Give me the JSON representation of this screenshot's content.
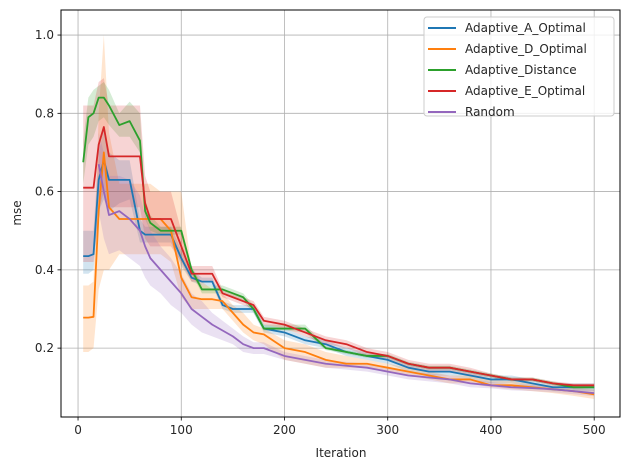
{
  "chart_data": {
    "type": "line",
    "title": "",
    "xlabel": "Iteration",
    "ylabel": "mse",
    "xlim": [
      -16.5,
      525
    ],
    "ylim": [
      0.024,
      1.064
    ],
    "xticks": [
      0,
      100,
      200,
      300,
      400,
      500
    ],
    "yticks": [
      0.2,
      0.4,
      0.6,
      0.8,
      1.0
    ],
    "xtick_labels": [
      "0",
      "100",
      "200",
      "300",
      "400",
      "500"
    ],
    "ytick_labels": [
      "0.2",
      "0.4",
      "0.6",
      "0.8",
      "1.0"
    ],
    "grid": true,
    "legend_position": "upper right",
    "x": [
      5,
      10,
      15,
      20,
      25,
      30,
      40,
      50,
      60,
      65,
      70,
      80,
      90,
      100,
      110,
      120,
      130,
      140,
      150,
      160,
      170,
      180,
      200,
      220,
      240,
      260,
      280,
      300,
      320,
      340,
      360,
      380,
      400,
      420,
      440,
      460,
      480,
      500
    ],
    "series": [
      {
        "name": "Adaptive_A_Optimal",
        "color": "#1f77b4",
        "values": [
          0.435,
          0.435,
          0.44,
          0.63,
          0.68,
          0.63,
          0.63,
          0.63,
          0.5,
          0.49,
          0.49,
          0.49,
          0.49,
          0.43,
          0.38,
          0.37,
          0.37,
          0.31,
          0.3,
          0.3,
          0.3,
          0.25,
          0.24,
          0.22,
          0.21,
          0.19,
          0.18,
          0.17,
          0.15,
          0.14,
          0.14,
          0.13,
          0.12,
          0.12,
          0.11,
          0.1,
          0.1,
          0.1
        ],
        "lower": [
          0.39,
          0.39,
          0.4,
          0.55,
          0.58,
          0.55,
          0.57,
          0.58,
          0.47,
          0.47,
          0.47,
          0.47,
          0.47,
          0.41,
          0.37,
          0.36,
          0.36,
          0.3,
          0.29,
          0.29,
          0.29,
          0.24,
          0.23,
          0.21,
          0.2,
          0.18,
          0.17,
          0.16,
          0.14,
          0.13,
          0.13,
          0.12,
          0.11,
          0.11,
          0.1,
          0.09,
          0.09,
          0.09
        ],
        "upper": [
          0.5,
          0.5,
          0.5,
          0.7,
          0.76,
          0.7,
          0.68,
          0.68,
          0.53,
          0.51,
          0.51,
          0.51,
          0.51,
          0.45,
          0.4,
          0.38,
          0.38,
          0.32,
          0.31,
          0.31,
          0.31,
          0.26,
          0.25,
          0.23,
          0.22,
          0.2,
          0.19,
          0.18,
          0.16,
          0.15,
          0.15,
          0.14,
          0.13,
          0.13,
          0.12,
          0.11,
          0.11,
          0.11
        ]
      },
      {
        "name": "Adaptive_D_Optimal",
        "color": "#ff7f0e",
        "values": [
          0.278,
          0.278,
          0.28,
          0.55,
          0.7,
          0.56,
          0.53,
          0.53,
          0.53,
          0.53,
          0.53,
          0.53,
          0.5,
          0.38,
          0.33,
          0.325,
          0.325,
          0.32,
          0.29,
          0.26,
          0.24,
          0.235,
          0.2,
          0.19,
          0.17,
          0.16,
          0.16,
          0.15,
          0.14,
          0.13,
          0.12,
          0.12,
          0.105,
          0.105,
          0.1,
          0.095,
          0.09,
          0.082
        ],
        "lower": [
          0.19,
          0.19,
          0.2,
          0.35,
          0.4,
          0.4,
          0.44,
          0.44,
          0.44,
          0.44,
          0.44,
          0.44,
          0.42,
          0.33,
          0.3,
          0.3,
          0.3,
          0.3,
          0.27,
          0.24,
          0.22,
          0.21,
          0.17,
          0.16,
          0.15,
          0.15,
          0.15,
          0.14,
          0.13,
          0.12,
          0.11,
          0.11,
          0.1,
          0.095,
          0.09,
          0.085,
          0.078,
          0.07
        ],
        "upper": [
          0.36,
          0.36,
          0.37,
          0.8,
          1.0,
          0.75,
          0.62,
          0.62,
          0.62,
          0.62,
          0.62,
          0.6,
          0.6,
          0.6,
          0.4,
          0.37,
          0.35,
          0.34,
          0.31,
          0.29,
          0.26,
          0.25,
          0.22,
          0.21,
          0.19,
          0.18,
          0.17,
          0.16,
          0.15,
          0.14,
          0.13,
          0.13,
          0.12,
          0.115,
          0.11,
          0.105,
          0.1,
          0.095
        ]
      },
      {
        "name": "Adaptive_Distance",
        "color": "#2ca02c",
        "values": [
          0.675,
          0.79,
          0.8,
          0.84,
          0.84,
          0.82,
          0.77,
          0.78,
          0.73,
          0.55,
          0.52,
          0.5,
          0.5,
          0.5,
          0.4,
          0.35,
          0.35,
          0.35,
          0.34,
          0.33,
          0.3,
          0.25,
          0.25,
          0.25,
          0.2,
          0.19,
          0.18,
          0.18,
          0.16,
          0.15,
          0.15,
          0.14,
          0.13,
          0.12,
          0.12,
          0.11,
          0.1,
          0.1
        ],
        "lower": [
          0.62,
          0.72,
          0.74,
          0.78,
          0.79,
          0.77,
          0.74,
          0.74,
          0.7,
          0.53,
          0.5,
          0.49,
          0.49,
          0.49,
          0.39,
          0.34,
          0.34,
          0.34,
          0.33,
          0.32,
          0.29,
          0.245,
          0.245,
          0.24,
          0.195,
          0.185,
          0.175,
          0.175,
          0.155,
          0.145,
          0.145,
          0.135,
          0.125,
          0.115,
          0.115,
          0.105,
          0.095,
          0.095
        ],
        "upper": [
          0.73,
          0.84,
          0.86,
          0.87,
          0.88,
          0.86,
          0.8,
          0.83,
          0.8,
          0.58,
          0.54,
          0.51,
          0.51,
          0.51,
          0.41,
          0.36,
          0.36,
          0.36,
          0.35,
          0.34,
          0.31,
          0.26,
          0.26,
          0.26,
          0.205,
          0.195,
          0.185,
          0.185,
          0.165,
          0.155,
          0.155,
          0.145,
          0.135,
          0.125,
          0.125,
          0.115,
          0.105,
          0.105
        ]
      },
      {
        "name": "Adaptive_E_Optimal",
        "color": "#d62728",
        "values": [
          0.61,
          0.61,
          0.61,
          0.72,
          0.765,
          0.69,
          0.69,
          0.69,
          0.69,
          0.57,
          0.53,
          0.53,
          0.53,
          0.46,
          0.39,
          0.39,
          0.39,
          0.34,
          0.33,
          0.32,
          0.31,
          0.27,
          0.26,
          0.24,
          0.22,
          0.21,
          0.19,
          0.18,
          0.16,
          0.15,
          0.15,
          0.14,
          0.13,
          0.12,
          0.12,
          0.11,
          0.105,
          0.105
        ],
        "lower": [
          0.42,
          0.42,
          0.42,
          0.55,
          0.6,
          0.56,
          0.56,
          0.56,
          0.56,
          0.48,
          0.46,
          0.46,
          0.46,
          0.42,
          0.37,
          0.37,
          0.37,
          0.33,
          0.32,
          0.31,
          0.3,
          0.26,
          0.25,
          0.23,
          0.21,
          0.2,
          0.18,
          0.17,
          0.15,
          0.14,
          0.14,
          0.13,
          0.125,
          0.115,
          0.115,
          0.105,
          0.1,
          0.1
        ],
        "upper": [
          0.82,
          0.82,
          0.82,
          0.88,
          0.89,
          0.82,
          0.82,
          0.82,
          0.82,
          0.64,
          0.6,
          0.6,
          0.6,
          0.5,
          0.41,
          0.41,
          0.41,
          0.35,
          0.34,
          0.33,
          0.32,
          0.28,
          0.27,
          0.25,
          0.23,
          0.22,
          0.2,
          0.19,
          0.17,
          0.16,
          0.16,
          0.15,
          0.135,
          0.125,
          0.125,
          0.115,
          0.11,
          0.11
        ]
      },
      {
        "name": "Random",
        "color": "#9467bd",
        "values": [
          null,
          null,
          null,
          0.67,
          0.6,
          0.54,
          0.55,
          0.53,
          0.5,
          0.46,
          0.43,
          0.4,
          0.37,
          0.34,
          0.3,
          0.28,
          0.26,
          0.245,
          0.23,
          0.21,
          0.2,
          0.2,
          0.18,
          0.17,
          0.16,
          0.155,
          0.15,
          0.14,
          0.13,
          0.125,
          0.12,
          0.11,
          0.105,
          0.1,
          0.098,
          0.095,
          0.09,
          0.085
        ],
        "lower": [
          null,
          null,
          null,
          0.55,
          0.48,
          0.44,
          0.45,
          0.43,
          0.41,
          0.38,
          0.36,
          0.34,
          0.31,
          0.29,
          0.26,
          0.24,
          0.23,
          0.22,
          0.21,
          0.19,
          0.185,
          0.185,
          0.17,
          0.16,
          0.15,
          0.145,
          0.14,
          0.13,
          0.12,
          0.115,
          0.11,
          0.1,
          0.097,
          0.092,
          0.09,
          0.087,
          0.082,
          0.077
        ],
        "upper": [
          null,
          null,
          null,
          0.75,
          0.7,
          0.64,
          0.64,
          0.63,
          0.59,
          0.54,
          0.5,
          0.46,
          0.43,
          0.39,
          0.34,
          0.32,
          0.29,
          0.27,
          0.25,
          0.23,
          0.215,
          0.215,
          0.19,
          0.18,
          0.17,
          0.165,
          0.16,
          0.15,
          0.14,
          0.135,
          0.13,
          0.12,
          0.113,
          0.108,
          0.106,
          0.103,
          0.098,
          0.093
        ]
      }
    ]
  },
  "legend": {
    "items": [
      {
        "label": "Adaptive_A_Optimal",
        "color": "#1f77b4"
      },
      {
        "label": "Adaptive_D_Optimal",
        "color": "#ff7f0e"
      },
      {
        "label": "Adaptive_Distance",
        "color": "#2ca02c"
      },
      {
        "label": "Adaptive_E_Optimal",
        "color": "#d62728"
      },
      {
        "label": "Random",
        "color": "#9467bd"
      }
    ]
  }
}
